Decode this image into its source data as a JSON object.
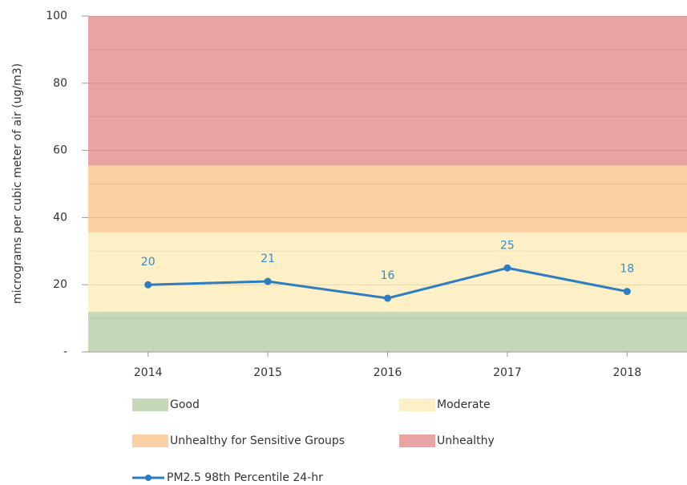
{
  "chart_data": {
    "type": "line",
    "y_label": "micrograms per cubic meter of air (ug/m3)",
    "categories": [
      "2014",
      "2015",
      "2016",
      "2017",
      "2018"
    ],
    "series": [
      {
        "name": "PM2.5 98th Percentile 24-hr",
        "color": "#2e7dc0",
        "values": [
          20,
          21,
          16,
          25,
          18
        ]
      }
    ],
    "bands": [
      {
        "name": "Good",
        "color": "#c5d8b8",
        "range": [
          0,
          12
        ]
      },
      {
        "name": "Moderate",
        "color": "#fdf0c6",
        "range": [
          12,
          35.5
        ]
      },
      {
        "name": "Unhealthy for Sensitive Groups",
        "color": "#fdd0a4",
        "range": [
          35.5,
          55.5
        ]
      },
      {
        "name": "Unhealthy",
        "color": "#e8a3a3",
        "range": [
          55.5,
          100
        ]
      }
    ],
    "ylim": [
      0,
      100
    ],
    "yticks": [
      {
        "value": 0,
        "label": "-"
      },
      20,
      40,
      60,
      80,
      100
    ],
    "minor_yticks": [
      10,
      30,
      50,
      70,
      90
    ],
    "grid": true
  }
}
